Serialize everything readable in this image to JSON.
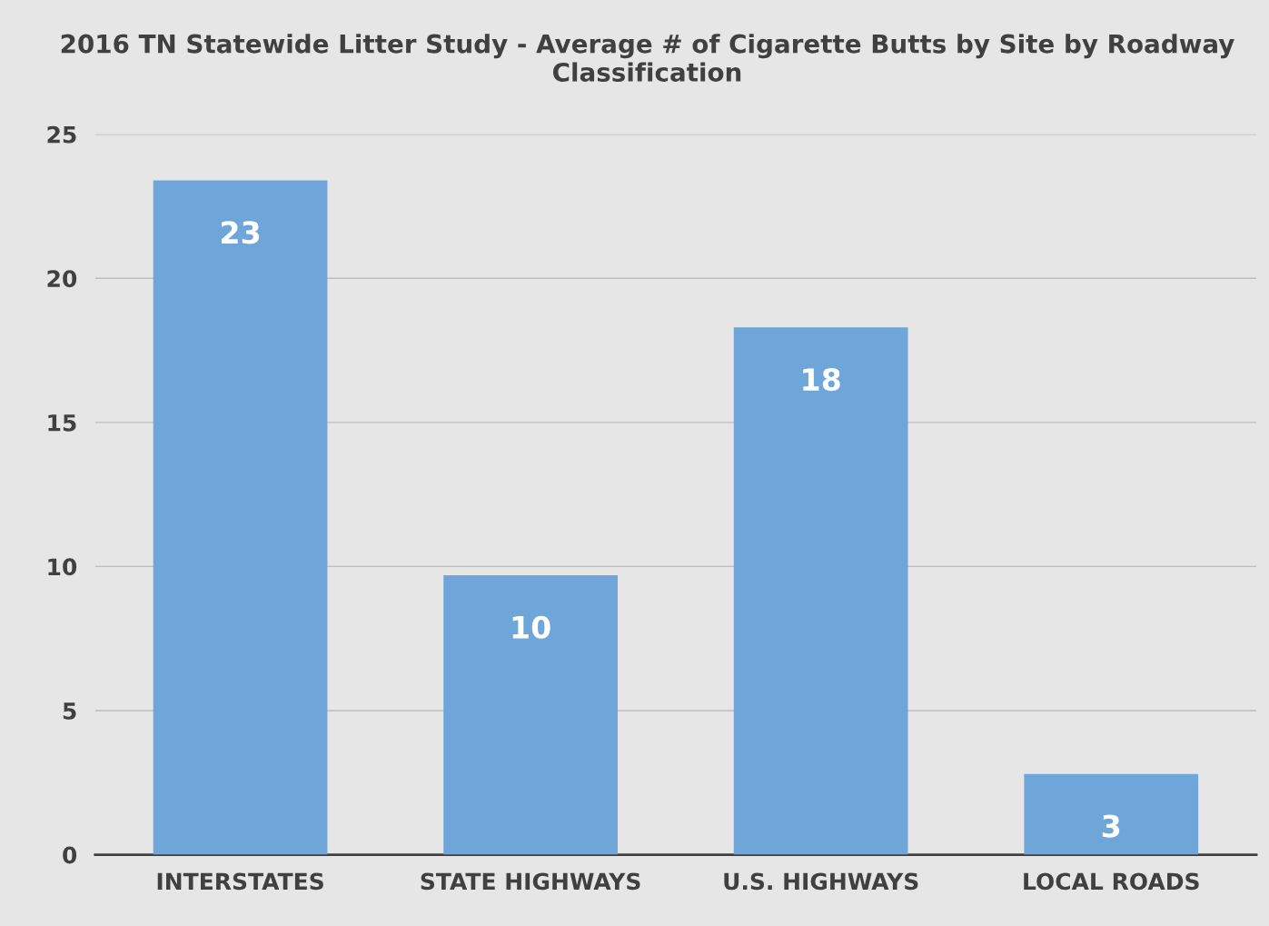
{
  "chart_data": {
    "type": "bar",
    "title": "2016 TN Statewide Litter Study - Average # of Cigarette Butts by Site by Roadway Classification",
    "categories": [
      "INTERSTATES",
      "STATE HIGHWAYS",
      "U.S. HIGHWAYS",
      "LOCAL ROADS"
    ],
    "values": [
      23.4,
      9.7,
      18.3,
      2.8
    ],
    "value_labels": [
      "23",
      "10",
      "18",
      "3"
    ],
    "color": "#6fa6d9",
    "ylim": [
      0,
      25
    ],
    "yticks": [
      0,
      5,
      10,
      15,
      20,
      25
    ],
    "grid": "y",
    "legend": false
  }
}
